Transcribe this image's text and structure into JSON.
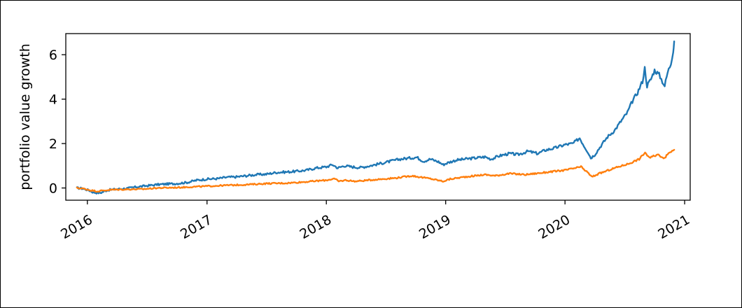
{
  "chart_data": {
    "type": "line",
    "title": "",
    "xlabel": "",
    "ylabel": "portfolio value growth",
    "xlim": [
      "2015-10-27",
      "2021-01-18"
    ],
    "ylim": [
      -0.55,
      6.95
    ],
    "x_ticks": [
      "2016-01-01",
      "2017-01-01",
      "2018-01-01",
      "2019-01-01",
      "2020-01-01",
      "2021-01-01"
    ],
    "x_tick_labels": [
      "2016",
      "2017",
      "2018",
      "2019",
      "2020",
      "2021"
    ],
    "y_ticks": [
      0,
      2,
      4,
      6
    ],
    "y_tick_labels": [
      "0",
      "2",
      "4",
      "6"
    ],
    "grid": false,
    "legend": "none",
    "series": [
      {
        "color": "#1f77b4",
        "points": [
          [
            "2015-11-30",
            0.0
          ],
          [
            "2015-12-15",
            -0.02
          ],
          [
            "2016-01-05",
            -0.1
          ],
          [
            "2016-01-20",
            -0.2
          ],
          [
            "2016-02-10",
            -0.22
          ],
          [
            "2016-03-01",
            -0.1
          ],
          [
            "2016-04-01",
            -0.05
          ],
          [
            "2016-05-01",
            -0.02
          ],
          [
            "2016-06-01",
            0.05
          ],
          [
            "2016-07-01",
            0.1
          ],
          [
            "2016-08-01",
            0.15
          ],
          [
            "2016-09-01",
            0.18
          ],
          [
            "2016-10-01",
            0.2
          ],
          [
            "2016-11-01",
            0.25
          ],
          [
            "2016-12-01",
            0.35
          ],
          [
            "2017-01-01",
            0.4
          ],
          [
            "2017-02-01",
            0.42
          ],
          [
            "2017-03-01",
            0.48
          ],
          [
            "2017-04-01",
            0.5
          ],
          [
            "2017-05-01",
            0.55
          ],
          [
            "2017-06-01",
            0.6
          ],
          [
            "2017-07-01",
            0.62
          ],
          [
            "2017-08-01",
            0.7
          ],
          [
            "2017-09-01",
            0.72
          ],
          [
            "2017-10-01",
            0.75
          ],
          [
            "2017-11-01",
            0.8
          ],
          [
            "2017-12-01",
            0.9
          ],
          [
            "2018-01-01",
            0.95
          ],
          [
            "2018-01-20",
            1.05
          ],
          [
            "2018-02-05",
            0.9
          ],
          [
            "2018-02-25",
            1.0
          ],
          [
            "2018-03-20",
            0.95
          ],
          [
            "2018-04-15",
            0.92
          ],
          [
            "2018-05-15",
            1.0
          ],
          [
            "2018-06-15",
            1.1
          ],
          [
            "2018-07-15",
            1.2
          ],
          [
            "2018-08-15",
            1.3
          ],
          [
            "2018-09-15",
            1.35
          ],
          [
            "2018-10-05",
            1.38
          ],
          [
            "2018-10-25",
            1.2
          ],
          [
            "2018-11-15",
            1.3
          ],
          [
            "2018-12-10",
            1.18
          ],
          [
            "2018-12-24",
            1.05
          ],
          [
            "2019-01-10",
            1.15
          ],
          [
            "2019-02-01",
            1.25
          ],
          [
            "2019-03-01",
            1.3
          ],
          [
            "2019-04-01",
            1.35
          ],
          [
            "2019-05-01",
            1.4
          ],
          [
            "2019-05-20",
            1.3
          ],
          [
            "2019-06-15",
            1.45
          ],
          [
            "2019-07-15",
            1.55
          ],
          [
            "2019-08-10",
            1.5
          ],
          [
            "2019-09-10",
            1.65
          ],
          [
            "2019-10-10",
            1.55
          ],
          [
            "2019-11-01",
            1.7
          ],
          [
            "2019-12-01",
            1.8
          ],
          [
            "2020-01-01",
            1.95
          ],
          [
            "2020-01-25",
            2.0
          ],
          [
            "2020-02-15",
            2.25
          ],
          [
            "2020-02-28",
            1.9
          ],
          [
            "2020-03-12",
            1.6
          ],
          [
            "2020-03-20",
            1.35
          ],
          [
            "2020-04-01",
            1.5
          ],
          [
            "2020-04-20",
            1.9
          ],
          [
            "2020-05-10",
            2.3
          ],
          [
            "2020-06-01",
            2.6
          ],
          [
            "2020-06-20",
            3.0
          ],
          [
            "2020-07-10",
            3.4
          ],
          [
            "2020-07-25",
            3.9
          ],
          [
            "2020-08-10",
            4.3
          ],
          [
            "2020-08-25",
            4.8
          ],
          [
            "2020-09-01",
            5.4
          ],
          [
            "2020-09-08",
            4.6
          ],
          [
            "2020-09-20",
            4.9
          ],
          [
            "2020-10-01",
            5.3
          ],
          [
            "2020-10-15",
            5.1
          ],
          [
            "2020-10-25",
            4.8
          ],
          [
            "2020-11-01",
            4.6
          ],
          [
            "2020-11-10",
            5.2
          ],
          [
            "2020-11-20",
            5.6
          ],
          [
            "2020-11-27",
            6.2
          ],
          [
            "2020-11-30",
            6.6
          ]
        ]
      },
      {
        "color": "#ff7f0e",
        "points": [
          [
            "2015-11-30",
            0.0
          ],
          [
            "2015-12-20",
            -0.03
          ],
          [
            "2016-01-10",
            -0.1
          ],
          [
            "2016-02-01",
            -0.15
          ],
          [
            "2016-02-15",
            -0.12
          ],
          [
            "2016-03-15",
            -0.08
          ],
          [
            "2016-05-01",
            -0.06
          ],
          [
            "2016-06-20",
            -0.05
          ],
          [
            "2016-08-01",
            0.0
          ],
          [
            "2016-10-01",
            0.02
          ],
          [
            "2016-11-15",
            0.05
          ],
          [
            "2017-01-01",
            0.08
          ],
          [
            "2017-03-01",
            0.12
          ],
          [
            "2017-05-01",
            0.15
          ],
          [
            "2017-07-01",
            0.2
          ],
          [
            "2017-09-01",
            0.22
          ],
          [
            "2017-11-01",
            0.28
          ],
          [
            "2018-01-01",
            0.35
          ],
          [
            "2018-01-25",
            0.42
          ],
          [
            "2018-02-08",
            0.3
          ],
          [
            "2018-03-01",
            0.35
          ],
          [
            "2018-04-01",
            0.3
          ],
          [
            "2018-06-01",
            0.38
          ],
          [
            "2018-08-01",
            0.45
          ],
          [
            "2018-09-20",
            0.55
          ],
          [
            "2018-10-10",
            0.5
          ],
          [
            "2018-11-15",
            0.42
          ],
          [
            "2018-12-24",
            0.3
          ],
          [
            "2019-01-15",
            0.4
          ],
          [
            "2019-03-01",
            0.5
          ],
          [
            "2019-05-01",
            0.6
          ],
          [
            "2019-06-01",
            0.55
          ],
          [
            "2019-07-15",
            0.65
          ],
          [
            "2019-09-01",
            0.6
          ],
          [
            "2019-11-01",
            0.7
          ],
          [
            "2020-01-01",
            0.8
          ],
          [
            "2020-02-19",
            0.95
          ],
          [
            "2020-03-10",
            0.7
          ],
          [
            "2020-03-23",
            0.5
          ],
          [
            "2020-04-15",
            0.65
          ],
          [
            "2020-06-01",
            0.9
          ],
          [
            "2020-07-15",
            1.1
          ],
          [
            "2020-08-15",
            1.3
          ],
          [
            "2020-09-02",
            1.6
          ],
          [
            "2020-09-15",
            1.35
          ],
          [
            "2020-10-10",
            1.5
          ],
          [
            "2020-11-01",
            1.35
          ],
          [
            "2020-11-15",
            1.6
          ],
          [
            "2020-11-30",
            1.72
          ]
        ]
      }
    ]
  }
}
